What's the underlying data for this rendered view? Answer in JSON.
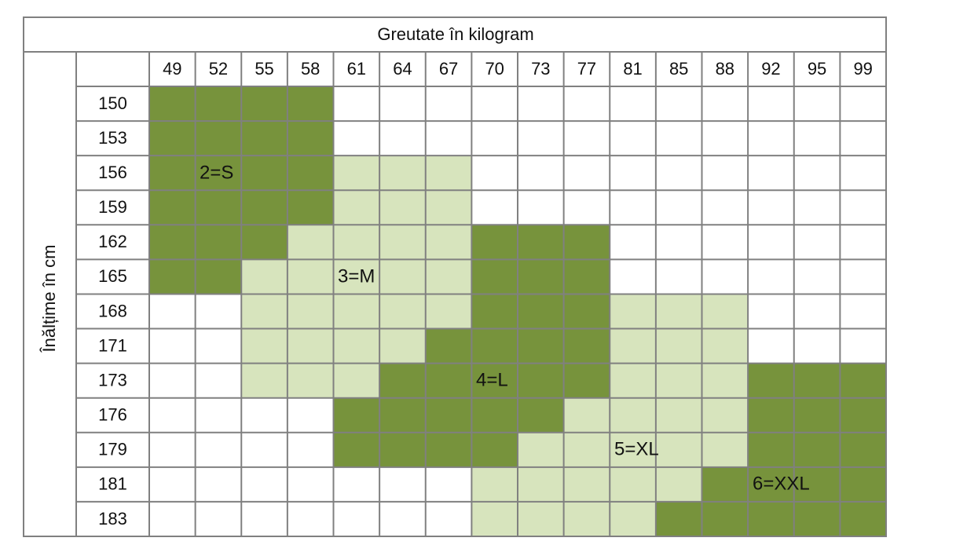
{
  "header": {
    "title": "Greutate în kilogram",
    "side_title": "Înălțime în cm"
  },
  "table": {
    "columns": [
      49,
      52,
      55,
      58,
      61,
      64,
      67,
      70,
      73,
      77,
      81,
      85,
      88,
      92,
      95,
      99
    ],
    "rows": [
      150,
      153,
      156,
      159,
      162,
      165,
      168,
      171,
      173,
      176,
      179,
      181,
      183
    ],
    "colors": {
      "dark": "#77933c",
      "light": "#d7e4bd",
      "none": "#ffffff"
    },
    "cells": [
      [
        "dark",
        "dark",
        "dark",
        "dark",
        "none",
        "none",
        "none",
        "none",
        "none",
        "none",
        "none",
        "none",
        "none",
        "none",
        "none",
        "none"
      ],
      [
        "dark",
        "dark",
        "dark",
        "dark",
        "none",
        "none",
        "none",
        "none",
        "none",
        "none",
        "none",
        "none",
        "none",
        "none",
        "none",
        "none"
      ],
      [
        "dark",
        "dark",
        "dark",
        "dark",
        "light",
        "light",
        "light",
        "none",
        "none",
        "none",
        "none",
        "none",
        "none",
        "none",
        "none",
        "none"
      ],
      [
        "dark",
        "dark",
        "dark",
        "dark",
        "light",
        "light",
        "light",
        "none",
        "none",
        "none",
        "none",
        "none",
        "none",
        "none",
        "none",
        "none"
      ],
      [
        "dark",
        "dark",
        "dark",
        "light",
        "light",
        "light",
        "light",
        "dark",
        "dark",
        "dark",
        "none",
        "none",
        "none",
        "none",
        "none",
        "none"
      ],
      [
        "dark",
        "dark",
        "light",
        "light",
        "light",
        "light",
        "light",
        "dark",
        "dark",
        "dark",
        "none",
        "none",
        "none",
        "none",
        "none",
        "none"
      ],
      [
        "none",
        "none",
        "light",
        "light",
        "light",
        "light",
        "light",
        "dark",
        "dark",
        "dark",
        "light",
        "light",
        "light",
        "none",
        "none",
        "none"
      ],
      [
        "none",
        "none",
        "light",
        "light",
        "light",
        "light",
        "dark",
        "dark",
        "dark",
        "dark",
        "light",
        "light",
        "light",
        "none",
        "none",
        "none"
      ],
      [
        "none",
        "none",
        "light",
        "light",
        "light",
        "dark",
        "dark",
        "dark",
        "dark",
        "dark",
        "light",
        "light",
        "light",
        "dark",
        "dark",
        "dark"
      ],
      [
        "none",
        "none",
        "none",
        "none",
        "dark",
        "dark",
        "dark",
        "dark",
        "dark",
        "light",
        "light",
        "light",
        "light",
        "dark",
        "dark",
        "dark"
      ],
      [
        "none",
        "none",
        "none",
        "none",
        "dark",
        "dark",
        "dark",
        "dark",
        "light",
        "light",
        "light",
        "light",
        "light",
        "dark",
        "dark",
        "dark"
      ],
      [
        "none",
        "none",
        "none",
        "none",
        "none",
        "none",
        "none",
        "light",
        "light",
        "light",
        "light",
        "light",
        "dark",
        "dark",
        "dark",
        "dark"
      ],
      [
        "none",
        "none",
        "none",
        "none",
        "none",
        "none",
        "none",
        "light",
        "light",
        "light",
        "light",
        "dark",
        "dark",
        "dark",
        "dark",
        "dark"
      ]
    ]
  },
  "zones": [
    "2=S",
    "3=M",
    "4=L",
    "5=XL",
    "6=XXL"
  ]
}
